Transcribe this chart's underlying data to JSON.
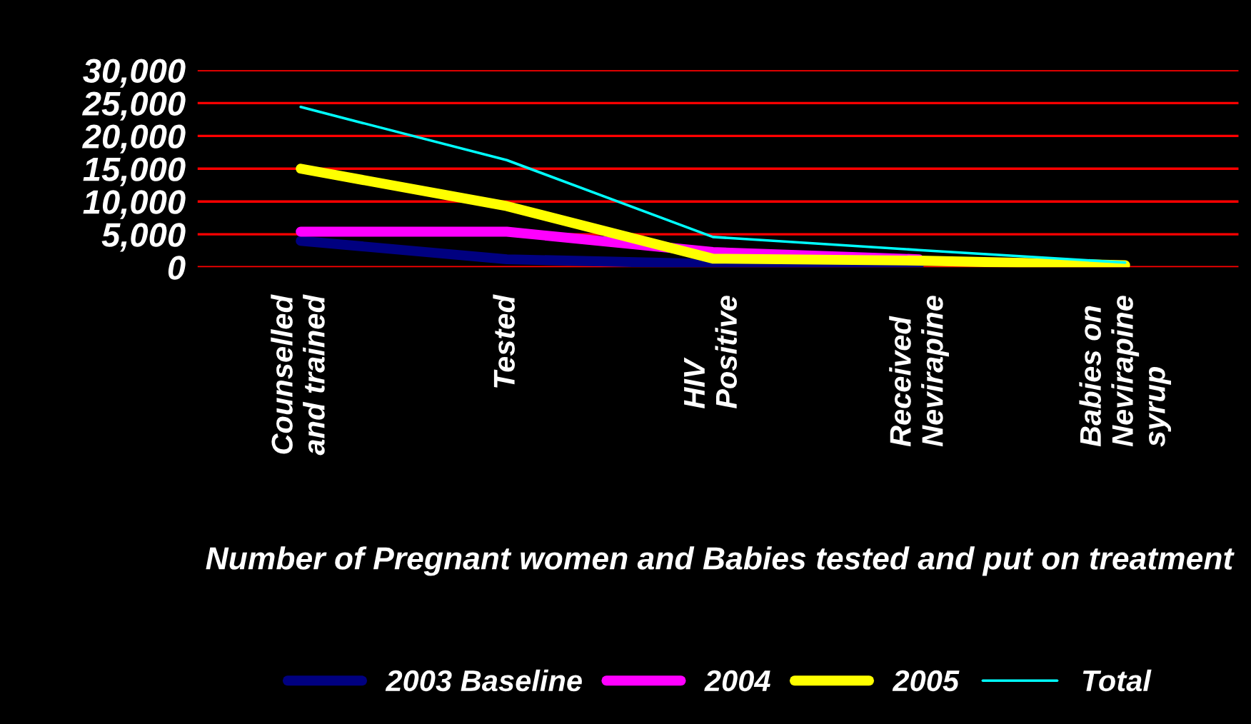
{
  "chart_data": {
    "type": "line",
    "xlabel": "Number of Pregnant women and Babies tested and put on treatment",
    "categories": [
      "Counselled\nand trained",
      "Tested",
      "HIV\nPositive",
      "Received\nNevirapine",
      "Babies on\nNevirapine\nsyrup"
    ],
    "series": [
      {
        "name": "2003 Baseline",
        "color": "#000080",
        "values": [
          4000,
          1200,
          500,
          400,
          null
        ]
      },
      {
        "name": "2004",
        "color": "#ff00ff",
        "values": [
          5400,
          5400,
          2300,
          1200,
          null
        ]
      },
      {
        "name": "2005",
        "color": "#ffff00",
        "values": [
          15000,
          9300,
          1300,
          1000,
          300
        ]
      },
      {
        "name": "Total",
        "color": "#00ffff",
        "values": [
          24400,
          16300,
          4600,
          2600,
          700
        ]
      }
    ],
    "ylim": [
      0,
      30000
    ],
    "yticks": [
      {
        "value": 0,
        "label": "0"
      },
      {
        "value": 5000,
        "label": "5,000"
      },
      {
        "value": 10000,
        "label": "10,000"
      },
      {
        "value": 15000,
        "label": "15,000"
      },
      {
        "value": 20000,
        "label": "20,000"
      },
      {
        "value": 25000,
        "label": "25,000"
      },
      {
        "value": 30000,
        "label": "30,000"
      }
    ],
    "grid": "y",
    "legend": "bottom",
    "marker": "none",
    "line_style": "solid"
  }
}
